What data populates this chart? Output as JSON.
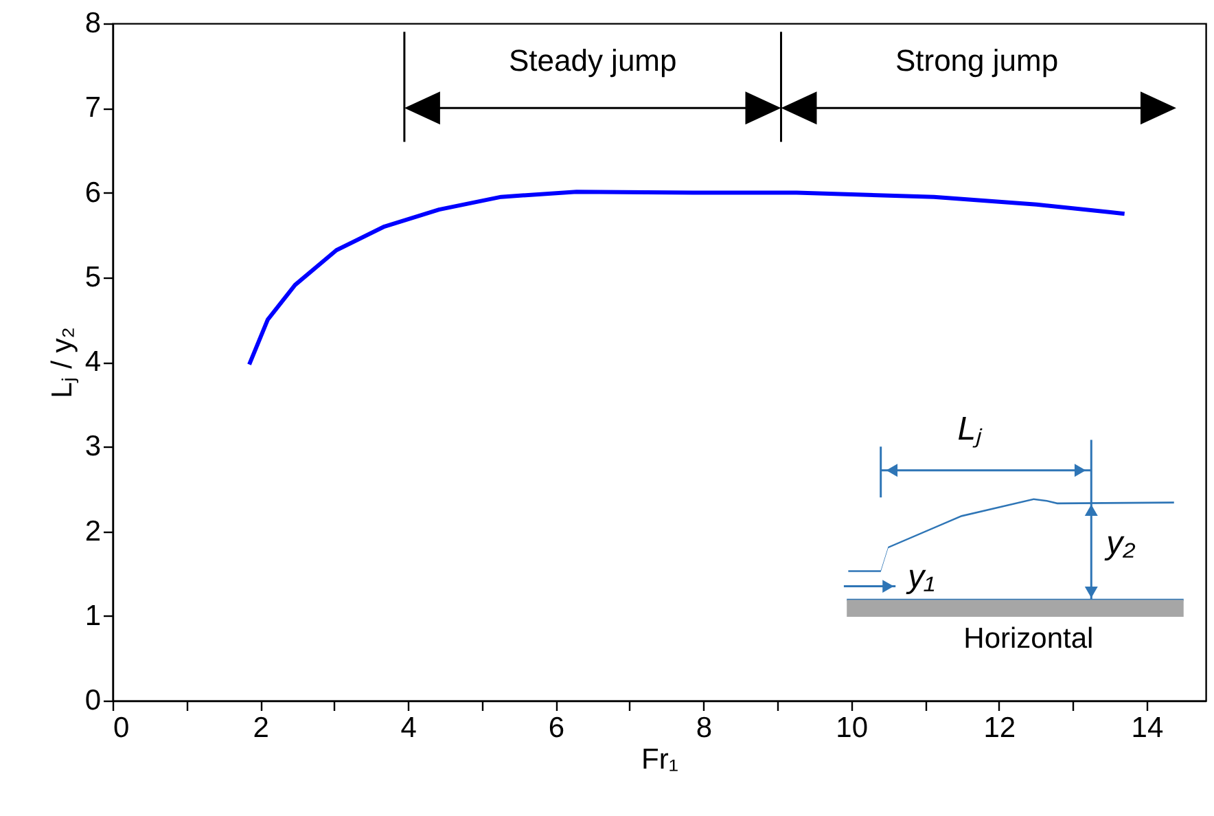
{
  "chart_data": {
    "type": "line",
    "xlabel": "Fr₁",
    "ylabel": "Lⱼ / y₂",
    "x": [
      1.85,
      2.1,
      2.47,
      3.03,
      3.68,
      4.42,
      5.26,
      6.28,
      7.86,
      9.26,
      11.12,
      12.51,
      13.49,
      13.7
    ],
    "series": [
      {
        "color": "#0000ff",
        "values": [
          3.97,
          4.5,
          4.91,
          5.32,
          5.6,
          5.8,
          5.95,
          6.01,
          6.0,
          6.0,
          5.95,
          5.86,
          5.77,
          5.75
        ]
      }
    ],
    "xlim": [
      0,
      14.8
    ],
    "ylim": [
      0,
      8
    ],
    "xticks": [
      0,
      {
        "value": 1,
        "label": null
      },
      2,
      {
        "value": 3,
        "label": null
      },
      4,
      {
        "value": 5,
        "label": null
      },
      6,
      {
        "value": 7,
        "label": null
      },
      8,
      {
        "value": 9,
        "label": null
      },
      10,
      {
        "value": 11,
        "label": null
      },
      12,
      {
        "value": 13,
        "label": null
      },
      14
    ],
    "yticks": [
      0,
      1,
      2,
      3,
      4,
      5,
      6,
      7,
      8
    ],
    "grid": false,
    "marker": "none",
    "line_style": "solid",
    "annotations": [
      "Steady jump",
      "Strong jump",
      "Lⱼ",
      "y₁",
      "y₂",
      "Horizontal"
    ]
  }
}
